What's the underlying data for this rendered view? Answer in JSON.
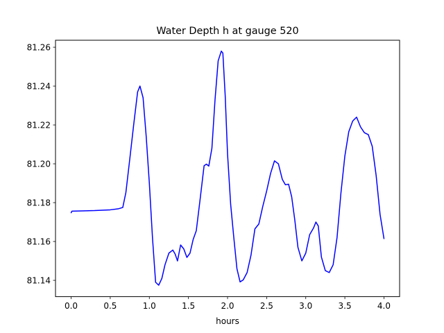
{
  "chart_data": {
    "type": "line",
    "title": "Water Depth h at gauge 520",
    "xlabel": "hours",
    "ylabel": "",
    "xlim": [
      -0.2,
      4.2
    ],
    "ylim": [
      81.1316,
      81.2636
    ],
    "grid": false,
    "xticks": [
      0.0,
      0.5,
      1.0,
      1.5,
      2.0,
      2.5,
      3.0,
      3.5,
      4.0
    ],
    "xtick_labels": [
      "0.0",
      "0.5",
      "1.0",
      "1.5",
      "2.0",
      "2.5",
      "3.0",
      "3.5",
      "4.0"
    ],
    "yticks": [
      81.14,
      81.16,
      81.18,
      81.2,
      81.22,
      81.24,
      81.26
    ],
    "ytick_labels": [
      "81.14",
      "81.16",
      "81.18",
      "81.20",
      "81.22",
      "81.24",
      "81.26"
    ],
    "series": [
      {
        "color": "#0000ff",
        "x": [
          0.0,
          0.01,
          0.1,
          0.3,
          0.5,
          0.6,
          0.66,
          0.7,
          0.75,
          0.8,
          0.85,
          0.88,
          0.92,
          0.96,
          1.0,
          1.04,
          1.08,
          1.12,
          1.16,
          1.2,
          1.25,
          1.3,
          1.33,
          1.36,
          1.4,
          1.44,
          1.48,
          1.52,
          1.56,
          1.6,
          1.65,
          1.7,
          1.73,
          1.76,
          1.8,
          1.84,
          1.88,
          1.92,
          1.94,
          1.97,
          2.0,
          2.04,
          2.08,
          2.12,
          2.16,
          2.2,
          2.25,
          2.3,
          2.35,
          2.4,
          2.45,
          2.5,
          2.55,
          2.6,
          2.65,
          2.7,
          2.74,
          2.78,
          2.82,
          2.86,
          2.9,
          2.95,
          3.0,
          3.05,
          3.1,
          3.13,
          3.16,
          3.2,
          3.25,
          3.3,
          3.35,
          3.4,
          3.45,
          3.5,
          3.55,
          3.6,
          3.65,
          3.7,
          3.75,
          3.8,
          3.85,
          3.9,
          3.95,
          4.0
        ],
        "y": [
          81.1748,
          81.1756,
          81.1757,
          81.1759,
          81.1763,
          81.1768,
          81.1775,
          81.1852,
          81.2025,
          81.2202,
          81.237,
          81.24,
          81.234,
          81.214,
          81.19,
          81.162,
          81.139,
          81.1375,
          81.141,
          81.148,
          81.154,
          81.1556,
          81.1535,
          81.15,
          81.1582,
          81.1562,
          81.1518,
          81.154,
          81.161,
          81.1655,
          81.182,
          81.199,
          81.1998,
          81.1988,
          81.208,
          81.233,
          81.253,
          81.258,
          81.257,
          81.235,
          81.205,
          81.179,
          81.162,
          81.146,
          81.1392,
          81.1402,
          81.144,
          81.153,
          81.1665,
          81.169,
          81.178,
          81.186,
          81.195,
          81.2015,
          81.2,
          81.192,
          81.1892,
          81.1895,
          81.183,
          81.171,
          81.157,
          81.15,
          81.154,
          81.1635,
          81.167,
          81.17,
          81.168,
          81.152,
          81.145,
          81.144,
          81.148,
          81.162,
          81.185,
          81.204,
          81.2165,
          81.222,
          81.224,
          81.219,
          81.216,
          81.215,
          81.209,
          81.194,
          81.174,
          81.1615
        ]
      }
    ]
  }
}
